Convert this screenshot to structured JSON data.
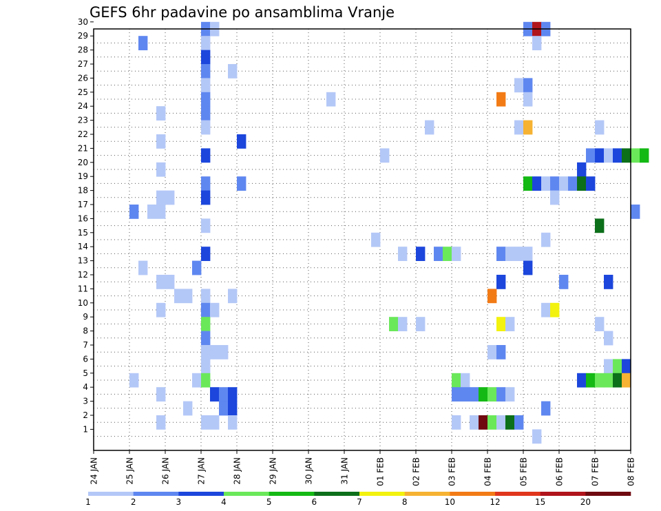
{
  "chart_data": {
    "type": "heatmap",
    "title": "GEFS 6hr padavine po ansamblima Vranje",
    "x_tick_labels": [
      "24 JAN",
      "25 JAN",
      "26 JAN",
      "27 JAN",
      "28 JAN",
      "29 JAN",
      "30 JAN",
      "31 JAN",
      "01 FEB",
      "02 FEB",
      "03 FEB",
      "04 FEB",
      "05 FEB",
      "06 FEB",
      "07 FEB",
      "08 FEB"
    ],
    "y_tick_labels": [
      "1",
      "2",
      "3",
      "4",
      "5",
      "6",
      "7",
      "8",
      "9",
      "10",
      "11",
      "12",
      "13",
      "14",
      "15",
      "16",
      "17",
      "18",
      "19",
      "20",
      "21",
      "22",
      "23",
      "24",
      "25",
      "26",
      "27",
      "28",
      "29",
      "30"
    ],
    "xlim_days": [
      0,
      15
    ],
    "ylim_members": [
      0,
      30
    ],
    "grid": "dotted",
    "legend": {
      "position": "bottom",
      "boundary_labels": [
        "1",
        "2",
        "3",
        "4",
        "5",
        "6",
        "7",
        "8",
        "10",
        "12",
        "15",
        "20"
      ],
      "colors": [
        "#b4c8f7",
        "#5f87f0",
        "#1c46dc",
        "#6ae85a",
        "#14b914",
        "#0c6f1a",
        "#f2f20e",
        "#f6b232",
        "#f27b16",
        "#e0361c",
        "#b0141c",
        "#6e0a10"
      ]
    },
    "cells": [
      {
        "d": 3.0,
        "m": 30,
        "v": 2
      },
      {
        "d": 3.25,
        "m": 30,
        "v": 1
      },
      {
        "d": 12.0,
        "m": 30,
        "v": 2
      },
      {
        "d": 12.25,
        "m": 30,
        "v": 15
      },
      {
        "d": 12.5,
        "m": 30,
        "v": 2
      },
      {
        "d": 1.25,
        "m": 29,
        "v": 2
      },
      {
        "d": 3.0,
        "m": 29,
        "v": 1
      },
      {
        "d": 12.25,
        "m": 29,
        "v": 1
      },
      {
        "d": 3.0,
        "m": 28,
        "v": 3
      },
      {
        "d": 3.0,
        "m": 27,
        "v": 2
      },
      {
        "d": 3.75,
        "m": 27,
        "v": 1
      },
      {
        "d": 3.0,
        "m": 26,
        "v": 1
      },
      {
        "d": 11.75,
        "m": 26,
        "v": 1
      },
      {
        "d": 12.0,
        "m": 26,
        "v": 2
      },
      {
        "d": 3.0,
        "m": 25,
        "v": 2
      },
      {
        "d": 6.5,
        "m": 25,
        "v": 1
      },
      {
        "d": 11.25,
        "m": 25,
        "v": 10
      },
      {
        "d": 12.0,
        "m": 25,
        "v": 1
      },
      {
        "d": 1.75,
        "m": 24,
        "v": 1
      },
      {
        "d": 3.0,
        "m": 24,
        "v": 2
      },
      {
        "d": 3.0,
        "m": 23,
        "v": 1
      },
      {
        "d": 9.25,
        "m": 23,
        "v": 1
      },
      {
        "d": 11.75,
        "m": 23,
        "v": 1
      },
      {
        "d": 12.0,
        "m": 23,
        "v": 8
      },
      {
        "d": 14.0,
        "m": 23,
        "v": 1
      },
      {
        "d": 1.75,
        "m": 22,
        "v": 1
      },
      {
        "d": 4.0,
        "m": 22,
        "v": 3
      },
      {
        "d": 3.0,
        "m": 21,
        "v": 3
      },
      {
        "d": 8.0,
        "m": 21,
        "v": 1
      },
      {
        "d": 13.75,
        "m": 21,
        "v": 2
      },
      {
        "d": 14.0,
        "m": 21,
        "v": 3
      },
      {
        "d": 14.25,
        "m": 21,
        "v": 1
      },
      {
        "d": 14.5,
        "m": 21,
        "v": 3
      },
      {
        "d": 14.75,
        "m": 21,
        "v": 6
      },
      {
        "d": 15.0,
        "m": 21,
        "v": 4
      },
      {
        "d": 15.25,
        "m": 21,
        "v": 5
      },
      {
        "d": 1.75,
        "m": 20,
        "v": 1
      },
      {
        "d": 13.5,
        "m": 20,
        "v": 3
      },
      {
        "d": 3.0,
        "m": 19,
        "v": 2
      },
      {
        "d": 4.0,
        "m": 19,
        "v": 2
      },
      {
        "d": 12.0,
        "m": 19,
        "v": 5
      },
      {
        "d": 12.25,
        "m": 19,
        "v": 3
      },
      {
        "d": 12.5,
        "m": 19,
        "v": 1
      },
      {
        "d": 12.75,
        "m": 19,
        "v": 2
      },
      {
        "d": 13.0,
        "m": 19,
        "v": 1
      },
      {
        "d": 13.25,
        "m": 19,
        "v": 2
      },
      {
        "d": 13.5,
        "m": 19,
        "v": 6
      },
      {
        "d": 13.75,
        "m": 19,
        "v": 3
      },
      {
        "d": 1.75,
        "m": 18,
        "v": 1
      },
      {
        "d": 2.0,
        "m": 18,
        "v": 1
      },
      {
        "d": 3.0,
        "m": 18,
        "v": 3
      },
      {
        "d": 12.75,
        "m": 18,
        "v": 1
      },
      {
        "d": 1.0,
        "m": 17,
        "v": 2
      },
      {
        "d": 1.5,
        "m": 17,
        "v": 1
      },
      {
        "d": 1.75,
        "m": 17,
        "v": 1
      },
      {
        "d": 15.0,
        "m": 17,
        "v": 2
      },
      {
        "d": 3.0,
        "m": 16,
        "v": 1
      },
      {
        "d": 14.0,
        "m": 16,
        "v": 6
      },
      {
        "d": 7.75,
        "m": 15,
        "v": 1
      },
      {
        "d": 12.5,
        "m": 15,
        "v": 1
      },
      {
        "d": 3.0,
        "m": 14,
        "v": 3
      },
      {
        "d": 8.5,
        "m": 14,
        "v": 1
      },
      {
        "d": 9.0,
        "m": 14,
        "v": 3
      },
      {
        "d": 9.5,
        "m": 14,
        "v": 2
      },
      {
        "d": 9.75,
        "m": 14,
        "v": 4
      },
      {
        "d": 10.0,
        "m": 14,
        "v": 1
      },
      {
        "d": 11.25,
        "m": 14,
        "v": 2
      },
      {
        "d": 11.5,
        "m": 14,
        "v": 1
      },
      {
        "d": 11.75,
        "m": 14,
        "v": 1
      },
      {
        "d": 12.0,
        "m": 14,
        "v": 1
      },
      {
        "d": 1.25,
        "m": 13,
        "v": 1
      },
      {
        "d": 2.75,
        "m": 13,
        "v": 2
      },
      {
        "d": 12.0,
        "m": 13,
        "v": 3
      },
      {
        "d": 1.75,
        "m": 12,
        "v": 1
      },
      {
        "d": 2.0,
        "m": 12,
        "v": 1
      },
      {
        "d": 11.25,
        "m": 12,
        "v": 3
      },
      {
        "d": 13.0,
        "m": 12,
        "v": 2
      },
      {
        "d": 14.25,
        "m": 12,
        "v": 3
      },
      {
        "d": 2.25,
        "m": 11,
        "v": 1
      },
      {
        "d": 2.5,
        "m": 11,
        "v": 1
      },
      {
        "d": 3.0,
        "m": 11,
        "v": 1
      },
      {
        "d": 3.75,
        "m": 11,
        "v": 1
      },
      {
        "d": 11.0,
        "m": 11,
        "v": 10
      },
      {
        "d": 1.75,
        "m": 10,
        "v": 1
      },
      {
        "d": 3.0,
        "m": 10,
        "v": 2
      },
      {
        "d": 3.25,
        "m": 10,
        "v": 1
      },
      {
        "d": 12.5,
        "m": 10,
        "v": 1
      },
      {
        "d": 12.75,
        "m": 10,
        "v": 7
      },
      {
        "d": 3.0,
        "m": 9,
        "v": 4
      },
      {
        "d": 8.25,
        "m": 9,
        "v": 4
      },
      {
        "d": 8.5,
        "m": 9,
        "v": 1
      },
      {
        "d": 9.0,
        "m": 9,
        "v": 1
      },
      {
        "d": 11.25,
        "m": 9,
        "v": 7
      },
      {
        "d": 11.5,
        "m": 9,
        "v": 1
      },
      {
        "d": 14.0,
        "m": 9,
        "v": 1
      },
      {
        "d": 3.0,
        "m": 8,
        "v": 2
      },
      {
        "d": 14.25,
        "m": 8,
        "v": 1
      },
      {
        "d": 3.0,
        "m": 7,
        "v": 1
      },
      {
        "d": 3.25,
        "m": 7,
        "v": 1
      },
      {
        "d": 3.5,
        "m": 7,
        "v": 1
      },
      {
        "d": 11.0,
        "m": 7,
        "v": 1
      },
      {
        "d": 11.25,
        "m": 7,
        "v": 2
      },
      {
        "d": 3.0,
        "m": 6,
        "v": 1
      },
      {
        "d": 14.25,
        "m": 6,
        "v": 1
      },
      {
        "d": 14.5,
        "m": 6,
        "v": 4
      },
      {
        "d": 14.75,
        "m": 6,
        "v": 3
      },
      {
        "d": 1.0,
        "m": 5,
        "v": 1
      },
      {
        "d": 2.75,
        "m": 5,
        "v": 1
      },
      {
        "d": 3.0,
        "m": 5,
        "v": 4
      },
      {
        "d": 10.0,
        "m": 5,
        "v": 4
      },
      {
        "d": 10.25,
        "m": 5,
        "v": 1
      },
      {
        "d": 13.5,
        "m": 5,
        "v": 3
      },
      {
        "d": 13.75,
        "m": 5,
        "v": 5
      },
      {
        "d": 14.0,
        "m": 5,
        "v": 4
      },
      {
        "d": 14.25,
        "m": 5,
        "v": 4
      },
      {
        "d": 14.5,
        "m": 5,
        "v": 6
      },
      {
        "d": 14.75,
        "m": 5,
        "v": 8
      },
      {
        "d": 1.75,
        "m": 4,
        "v": 1
      },
      {
        "d": 3.25,
        "m": 4,
        "v": 3
      },
      {
        "d": 3.5,
        "m": 4,
        "v": 2
      },
      {
        "d": 3.75,
        "m": 4,
        "v": 3
      },
      {
        "d": 10.0,
        "m": 4,
        "v": 2
      },
      {
        "d": 10.25,
        "m": 4,
        "v": 2
      },
      {
        "d": 10.5,
        "m": 4,
        "v": 2
      },
      {
        "d": 10.75,
        "m": 4,
        "v": 5
      },
      {
        "d": 11.0,
        "m": 4,
        "v": 4
      },
      {
        "d": 11.25,
        "m": 4,
        "v": 2
      },
      {
        "d": 11.5,
        "m": 4,
        "v": 1
      },
      {
        "d": 2.5,
        "m": 3,
        "v": 1
      },
      {
        "d": 3.5,
        "m": 3,
        "v": 2
      },
      {
        "d": 3.75,
        "m": 3,
        "v": 3
      },
      {
        "d": 12.5,
        "m": 3,
        "v": 2
      },
      {
        "d": 1.75,
        "m": 2,
        "v": 1
      },
      {
        "d": 3.0,
        "m": 2,
        "v": 1
      },
      {
        "d": 3.25,
        "m": 2,
        "v": 1
      },
      {
        "d": 3.75,
        "m": 2,
        "v": 1
      },
      {
        "d": 10.0,
        "m": 2,
        "v": 1
      },
      {
        "d": 10.5,
        "m": 2,
        "v": 1
      },
      {
        "d": 10.75,
        "m": 2,
        "v": 20
      },
      {
        "d": 11.0,
        "m": 2,
        "v": 4
      },
      {
        "d": 11.25,
        "m": 2,
        "v": 1
      },
      {
        "d": 11.5,
        "m": 2,
        "v": 6
      },
      {
        "d": 11.75,
        "m": 2,
        "v": 2
      },
      {
        "d": 12.25,
        "m": 1,
        "v": 1
      }
    ]
  }
}
